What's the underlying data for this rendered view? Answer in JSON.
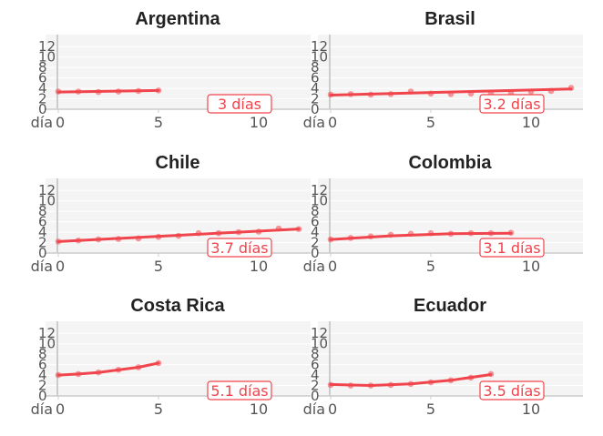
{
  "chart_data": [
    {
      "type": "line",
      "title": "Argentina",
      "x_prefix": "día",
      "xticks": [
        0,
        5,
        10
      ],
      "yticks": [
        0,
        2,
        4,
        6,
        8,
        10,
        12
      ],
      "xlim": [
        -0.5,
        12.5
      ],
      "ylim": [
        0,
        13.5
      ],
      "points": [
        [
          0,
          3.4
        ],
        [
          1,
          3.4
        ],
        [
          2,
          3.3
        ],
        [
          3,
          3.4
        ],
        [
          4,
          3.5
        ],
        [
          5,
          3.6
        ]
      ],
      "trend": [
        [
          0,
          3.3
        ],
        [
          5,
          3.6
        ]
      ],
      "doubling_label": "3 días",
      "color": "#f0454c"
    },
    {
      "type": "line",
      "title": "Brasil",
      "x_prefix": "día",
      "xticks": [
        0,
        5,
        10
      ],
      "yticks": [
        0,
        2,
        4,
        6,
        8,
        10,
        12
      ],
      "xlim": [
        -0.5,
        12.5
      ],
      "ylim": [
        0,
        13.5
      ],
      "points": [
        [
          0,
          2.8
        ],
        [
          1,
          2.9
        ],
        [
          2,
          2.8
        ],
        [
          3,
          2.9
        ],
        [
          4,
          3.4
        ],
        [
          5,
          3.0
        ],
        [
          6,
          2.9
        ],
        [
          7,
          3.0
        ],
        [
          8,
          3.0
        ],
        [
          9,
          3.1
        ],
        [
          10,
          3.4
        ],
        [
          11,
          3.5
        ],
        [
          12,
          4.1
        ]
      ],
      "trend": [
        [
          0,
          2.7
        ],
        [
          12,
          3.9
        ]
      ],
      "doubling_label": "3.2 días",
      "color": "#f0454c"
    },
    {
      "type": "line",
      "title": "Chile",
      "x_prefix": "día",
      "xticks": [
        0,
        5,
        10
      ],
      "yticks": [
        0,
        2,
        4,
        6,
        8,
        10,
        12
      ],
      "xlim": [
        -0.5,
        12.5
      ],
      "ylim": [
        0,
        13.5
      ],
      "points": [
        [
          0,
          2.2
        ],
        [
          1,
          2.4
        ],
        [
          2,
          2.6
        ],
        [
          3,
          2.7
        ],
        [
          4,
          2.8
        ],
        [
          5,
          3.1
        ],
        [
          6,
          3.3
        ],
        [
          7,
          3.8
        ],
        [
          8,
          3.8
        ],
        [
          9,
          4.0
        ],
        [
          10,
          4.1
        ],
        [
          11,
          4.7
        ],
        [
          12,
          4.6
        ]
      ],
      "trend": [
        [
          0,
          2.2
        ],
        [
          12,
          4.6
        ]
      ],
      "doubling_label": "3.7 días",
      "color": "#f0454c"
    },
    {
      "type": "line",
      "title": "Colombia",
      "x_prefix": "día",
      "xticks": [
        0,
        5,
        10
      ],
      "yticks": [
        0,
        2,
        4,
        6,
        8,
        10,
        12
      ],
      "xlim": [
        -0.5,
        12.5
      ],
      "ylim": [
        0,
        13.5
      ],
      "points": [
        [
          0,
          2.6
        ],
        [
          1,
          2.9
        ],
        [
          2,
          3.2
        ],
        [
          3,
          3.5
        ],
        [
          4,
          3.7
        ],
        [
          5,
          3.8
        ],
        [
          6,
          3.7
        ],
        [
          7,
          3.8
        ],
        [
          8,
          3.8
        ],
        [
          9,
          3.9
        ]
      ],
      "trend": [
        [
          0,
          2.6
        ],
        [
          3,
          3.3
        ],
        [
          6,
          3.7
        ],
        [
          9,
          3.8
        ]
      ],
      "doubling_label": "3.1 días",
      "color": "#f0454c"
    },
    {
      "type": "line",
      "title": "Costa Rica",
      "x_prefix": "día",
      "xticks": [
        0,
        5,
        10
      ],
      "yticks": [
        0,
        2,
        4,
        6,
        8,
        10,
        12
      ],
      "xlim": [
        -0.5,
        12.5
      ],
      "ylim": [
        0,
        13.5
      ],
      "points": [
        [
          0,
          4.0
        ],
        [
          1,
          4.2
        ],
        [
          2,
          4.5
        ],
        [
          3,
          5.0
        ],
        [
          4,
          5.5
        ],
        [
          5,
          6.3
        ]
      ],
      "trend": [
        [
          0,
          4.0
        ],
        [
          1,
          4.2
        ],
        [
          2,
          4.5
        ],
        [
          3,
          5.0
        ],
        [
          4,
          5.5
        ],
        [
          5,
          6.3
        ]
      ],
      "doubling_label": "5.1 días",
      "color": "#f0454c"
    },
    {
      "type": "line",
      "title": "Ecuador",
      "x_prefix": "día",
      "xticks": [
        0,
        5,
        10
      ],
      "yticks": [
        0,
        2,
        4,
        6,
        8,
        10,
        12
      ],
      "xlim": [
        -0.5,
        12.5
      ],
      "ylim": [
        0,
        13.5
      ],
      "points": [
        [
          0,
          2.1
        ],
        [
          1,
          2.0
        ],
        [
          2,
          2.0
        ],
        [
          3,
          2.1
        ],
        [
          4,
          2.3
        ],
        [
          5,
          2.6
        ],
        [
          6,
          3.0
        ],
        [
          7,
          3.5
        ],
        [
          8,
          4.2
        ]
      ],
      "trend": [
        [
          0,
          2.2
        ],
        [
          2,
          2.0
        ],
        [
          4,
          2.3
        ],
        [
          6,
          3.0
        ],
        [
          8,
          4.1
        ]
      ],
      "doubling_label": "3.5 días",
      "color": "#f0454c"
    }
  ]
}
